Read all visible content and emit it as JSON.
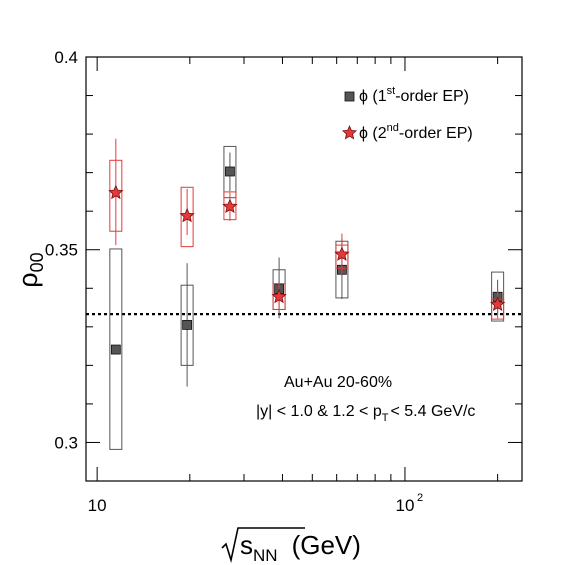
{
  "chart_data": {
    "type": "scatter",
    "x_scale": "log",
    "xlim": [
      9.2,
      240
    ],
    "ylim": [
      0.29,
      0.4
    ],
    "x_ticks": [
      {
        "value": 10,
        "label": "10"
      },
      {
        "value": 100,
        "label": "10",
        "sup": "2"
      }
    ],
    "y_ticks": [
      {
        "value": 0.3,
        "label": "0.3"
      },
      {
        "value": 0.35,
        "label": "0.35"
      },
      {
        "value": 0.4,
        "label": "0.4"
      }
    ],
    "xlabel": {
      "main": "s",
      "sub": "NN",
      "unit": "(GeV)"
    },
    "ylabel": {
      "main": "ρ",
      "sub": "00"
    },
    "reference_line": {
      "y": 0.3333,
      "style": "dotted"
    },
    "annotation": {
      "line1": "Au+Au 20-60%",
      "line2_a": "|y| < 1.0 & 1.2 < p",
      "line2_sub": "T",
      "line2_b": "< 5.4 GeV/c"
    },
    "legend": {
      "position": "top-right",
      "entries": [
        {
          "prefix": "ϕ (1",
          "sup": "st",
          "suffix": "-order EP)",
          "marker": "square",
          "color": "#555555"
        },
        {
          "prefix": "ϕ (2",
          "sup": "nd",
          "suffix": "-order EP)",
          "marker": "star",
          "color": "#e23a3a"
        }
      ]
    },
    "series": [
      {
        "name": "ϕ (1st-order EP)",
        "marker": "square",
        "color": "#555555",
        "box_color": "#555555",
        "points": [
          {
            "x": 11.5,
            "y": 0.3241,
            "stat": [
              0.0,
              0.0
            ],
            "sys": [
              0.2982,
              0.3502
            ]
          },
          {
            "x": 19.6,
            "y": 0.3305,
            "stat": [
              0.3145,
              0.3465
            ],
            "sys": [
              0.32,
              0.3408
            ]
          },
          {
            "x": 27,
            "y": 0.3703,
            "stat": [
              0.3652,
              0.3752
            ],
            "sys": [
              0.3635,
              0.3768
            ]
          },
          {
            "x": 39,
            "y": 0.3398,
            "stat": [
              0.3322,
              0.348
            ],
            "sys": [
              0.3345,
              0.3448
            ]
          },
          {
            "x": 62.4,
            "y": 0.3448,
            "stat": [
              0.3372,
              0.3528
            ],
            "sys": [
              0.3375,
              0.3522
            ]
          },
          {
            "x": 200,
            "y": 0.3378,
            "stat": [
              0.3332,
              0.3422
            ],
            "sys": [
              0.3315,
              0.3442
            ]
          }
        ]
      },
      {
        "name": "ϕ (2nd-order EP)",
        "marker": "star",
        "color": "#e23a3a",
        "box_color": "#e23a3a",
        "points": [
          {
            "x": 11.5,
            "y": 0.3648,
            "stat": [
              0.3512,
              0.3788
            ],
            "sys": [
              0.3548,
              0.3732
            ]
          },
          {
            "x": 19.6,
            "y": 0.3588,
            "stat": [
              0.3538,
              0.3658
            ],
            "sys": [
              0.3508,
              0.3662
            ]
          },
          {
            "x": 27,
            "y": 0.3612,
            "stat": [
              0.3575,
              0.3648
            ],
            "sys": [
              0.3578,
              0.365
            ]
          },
          {
            "x": 39,
            "y": 0.3378,
            "stat": [
              0.3342,
              0.3412
            ],
            "sys": [
              0.3345,
              0.3412
            ]
          },
          {
            "x": 62.4,
            "y": 0.3488,
            "stat": [
              0.3432,
              0.3542
            ],
            "sys": [
              0.3452,
              0.3512
            ]
          },
          {
            "x": 200,
            "y": 0.3358,
            "stat": [
              0.3322,
              0.3398
            ],
            "sys": [
              0.332,
              0.3372
            ]
          }
        ]
      }
    ]
  }
}
